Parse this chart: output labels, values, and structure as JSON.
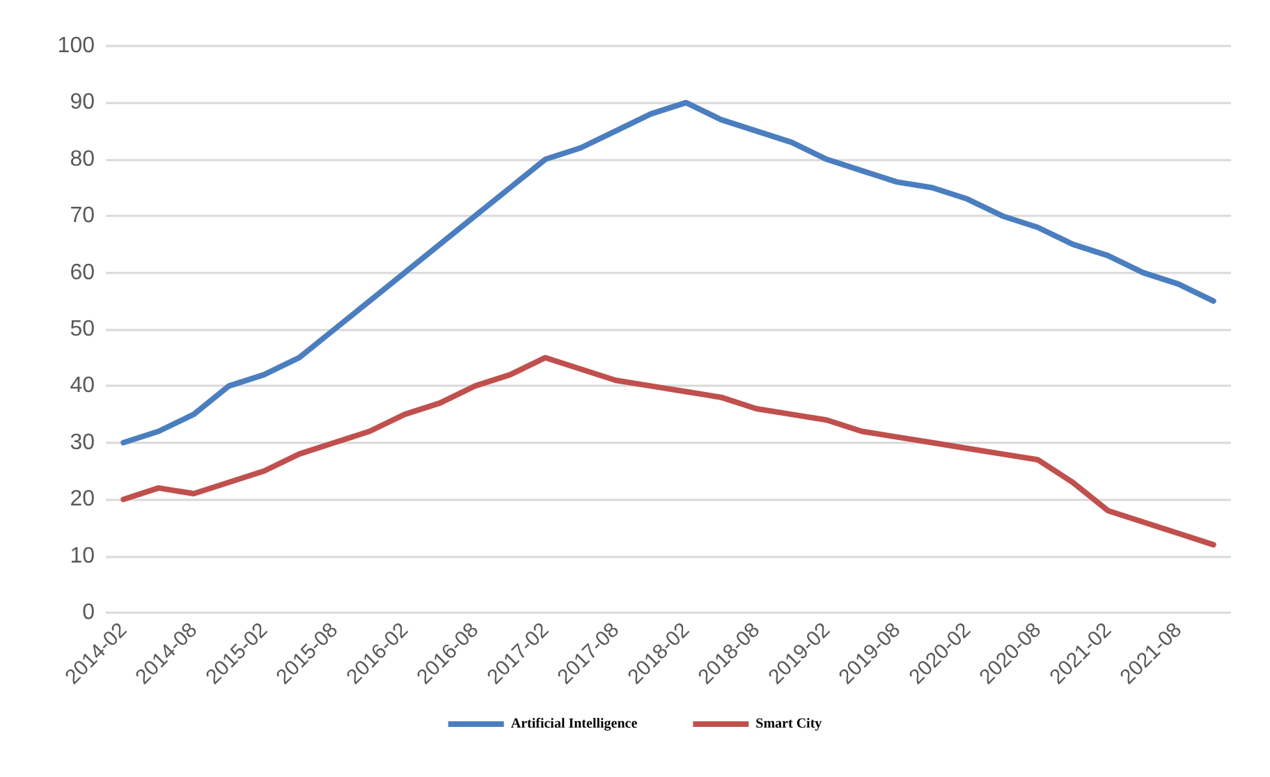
{
  "chart_data": {
    "type": "line",
    "categories": [
      "2014-02",
      null,
      "2014-08",
      null,
      "2015-02",
      null,
      "2015-08",
      null,
      "2016-02",
      null,
      "2016-08",
      null,
      "2017-02",
      null,
      "2017-08",
      null,
      "2018-02",
      null,
      "2018-08",
      null,
      "2019-02",
      null,
      "2019-08",
      null,
      "2020-02",
      null,
      "2020-08",
      null,
      "2021-02",
      null,
      "2021-08",
      null
    ],
    "series": [
      {
        "name": "Artificial Intelligence",
        "color": "#4a7ebf",
        "values": [
          30,
          32,
          35,
          40,
          42,
          45,
          50,
          55,
          60,
          65,
          70,
          75,
          80,
          82,
          85,
          88,
          90,
          87,
          85,
          83,
          80,
          78,
          76,
          75,
          73,
          70,
          68,
          65,
          63,
          60,
          58,
          55
        ]
      },
      {
        "name": "Smart City",
        "color": "#c0504d",
        "values": [
          20,
          22,
          21,
          23,
          25,
          28,
          30,
          32,
          35,
          37,
          40,
          42,
          45,
          43,
          41,
          40,
          39,
          38,
          36,
          35,
          34,
          32,
          31,
          30,
          29,
          28,
          27,
          23,
          18,
          16,
          14,
          12
        ]
      }
    ],
    "ylim": [
      0,
      100
    ],
    "yticks": [
      0,
      10,
      20,
      30,
      40,
      50,
      60,
      70,
      80,
      90,
      100
    ],
    "grid": "y",
    "legend": "bottom",
    "marker": "none",
    "line_style": "solid"
  }
}
